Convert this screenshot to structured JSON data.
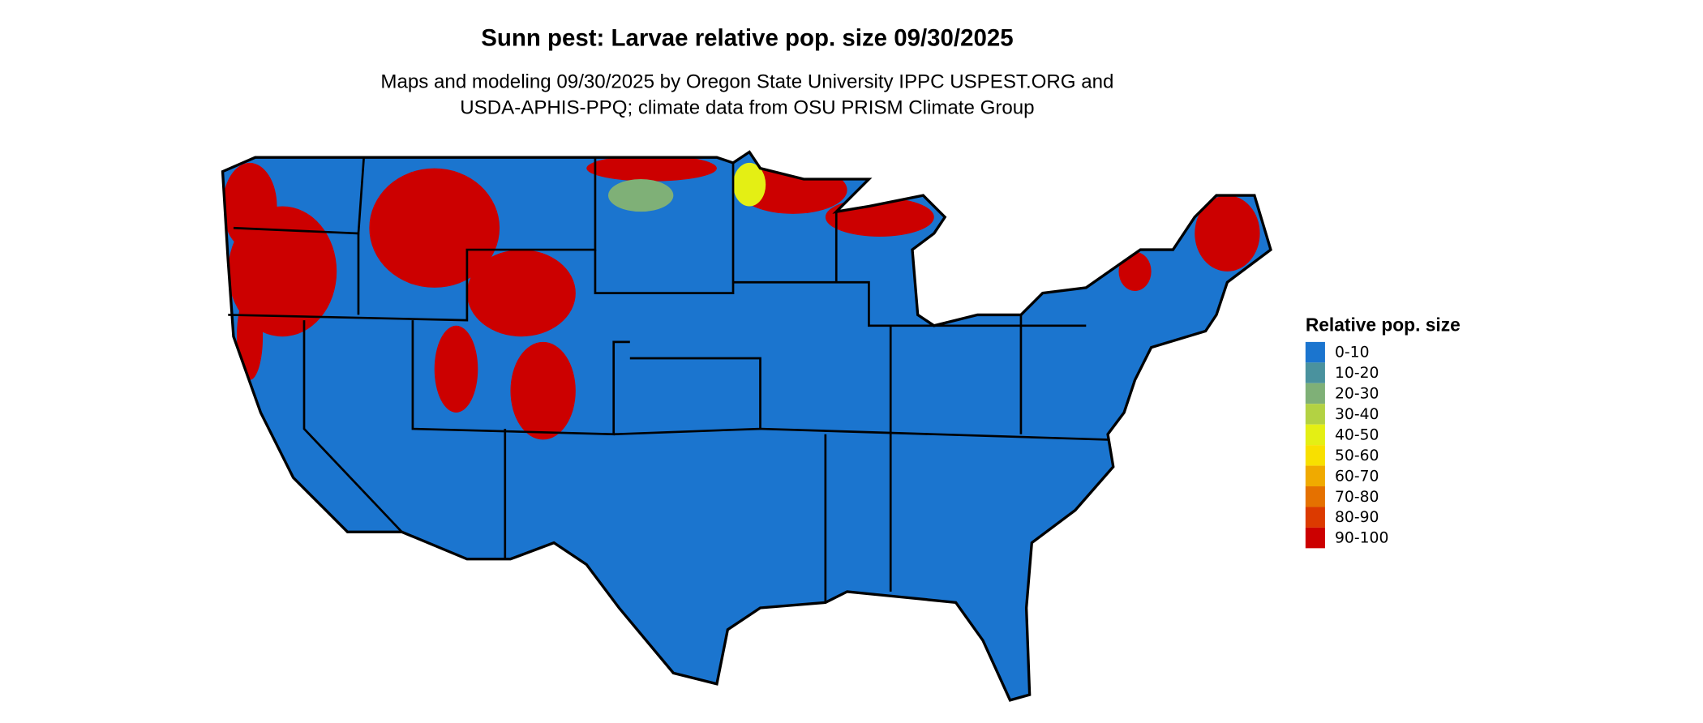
{
  "title": "Sunn pest: Larvae relative pop. size 09/30/2025",
  "subtitle_line1": "Maps and modeling 09/30/2025 by Oregon State University IPPC USPEST.ORG and",
  "subtitle_line2": "USDA-APHIS-PPQ; climate data from OSU PRISM Climate Group",
  "legend": {
    "title": "Relative pop. size",
    "items": [
      {
        "label": "0-10",
        "color": "#1b75cf"
      },
      {
        "label": "10-20",
        "color": "#4a929e"
      },
      {
        "label": "20-30",
        "color": "#7fb077"
      },
      {
        "label": "30-40",
        "color": "#b3d243"
      },
      {
        "label": "40-50",
        "color": "#e4ef14"
      },
      {
        "label": "50-60",
        "color": "#f8e000"
      },
      {
        "label": "60-70",
        "color": "#f0aa00"
      },
      {
        "label": "70-80",
        "color": "#e57100"
      },
      {
        "label": "80-90",
        "color": "#dc3a00"
      },
      {
        "label": "90-100",
        "color": "#cc0000"
      }
    ]
  }
}
